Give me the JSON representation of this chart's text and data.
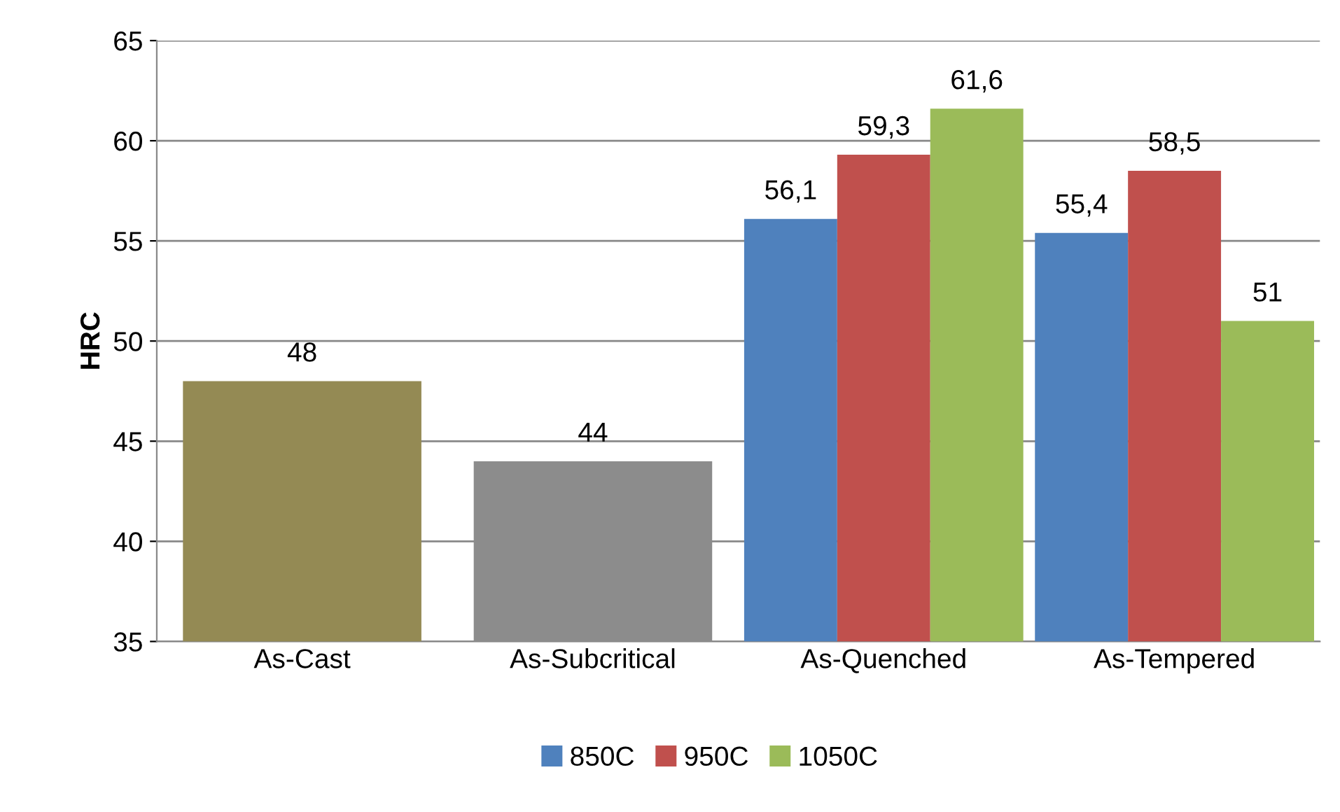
{
  "chart_data": {
    "type": "bar",
    "ylabel": "HRC",
    "categories": [
      "As-Cast",
      "As-Subcritical",
      "As-Quenched",
      "As-Tempered"
    ],
    "series": [
      {
        "colors": [
          "#948a54",
          "#8c8c8c",
          null,
          null
        ],
        "values": [
          48,
          44,
          null,
          null
        ],
        "value_labels": [
          "48",
          "44",
          null,
          null
        ]
      },
      {
        "name": "850C",
        "color": "#4f81bd",
        "values": [
          null,
          null,
          56.1,
          55.4
        ],
        "value_labels": [
          null,
          null,
          "56,1",
          "55,4"
        ]
      },
      {
        "name": "950C",
        "color": "#c0504d",
        "values": [
          null,
          null,
          59.3,
          58.5
        ],
        "value_labels": [
          null,
          null,
          "59,3",
          "58,5"
        ]
      },
      {
        "name": "1050C",
        "color": "#9bbb59",
        "values": [
          null,
          null,
          61.6,
          51
        ],
        "value_labels": [
          null,
          null,
          "61,6",
          "51"
        ]
      }
    ],
    "ylim": [
      35,
      65
    ],
    "yticks": [
      35,
      40,
      45,
      50,
      55,
      60,
      65
    ],
    "grid": "y",
    "legend": "bottom"
  }
}
